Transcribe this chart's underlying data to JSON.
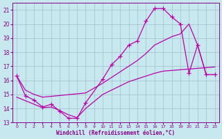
{
  "xlabel": "Windchill (Refroidissement éolien,°C)",
  "bg_color": "#c8e8f0",
  "line_color": "#bb00aa",
  "grid_color": "#a0bfcc",
  "xlim": [
    -0.5,
    23.5
  ],
  "ylim": [
    13,
    21.5
  ],
  "xticks": [
    0,
    1,
    2,
    3,
    4,
    5,
    6,
    7,
    8,
    9,
    10,
    11,
    12,
    13,
    14,
    15,
    16,
    17,
    18,
    19,
    20,
    21,
    22,
    23
  ],
  "yticks": [
    13,
    14,
    15,
    16,
    17,
    18,
    19,
    20,
    21
  ],
  "line1_x": [
    0,
    1,
    2,
    3,
    4,
    5,
    6,
    7,
    8,
    10,
    11,
    12,
    13,
    14,
    15,
    16,
    17,
    18,
    19,
    20,
    21,
    22,
    23
  ],
  "line1_y": [
    16.3,
    14.9,
    14.6,
    14.1,
    14.3,
    13.8,
    13.3,
    13.3,
    14.4,
    16.1,
    17.1,
    17.7,
    18.5,
    18.8,
    20.2,
    21.1,
    21.1,
    20.5,
    20.0,
    16.5,
    18.5,
    16.4,
    16.4
  ],
  "line2_x": [
    0,
    1,
    2,
    3,
    8,
    10,
    11,
    12,
    13,
    14,
    15,
    16,
    17,
    18,
    19,
    20,
    21,
    22,
    23
  ],
  "line2_y": [
    16.3,
    15.3,
    15.0,
    14.8,
    15.1,
    15.8,
    16.2,
    16.6,
    17.0,
    17.4,
    17.9,
    18.5,
    18.8,
    19.1,
    19.3,
    20.0,
    18.5,
    16.4,
    16.4
  ],
  "line3_x": [
    0,
    1,
    2,
    3,
    4,
    5,
    6,
    7,
    8,
    9,
    10,
    11,
    12,
    13,
    14,
    15,
    16,
    17,
    18,
    19,
    20,
    21,
    22,
    23
  ],
  "line3_y": [
    14.8,
    14.55,
    14.3,
    14.05,
    14.1,
    13.85,
    13.55,
    13.35,
    14.0,
    14.5,
    15.0,
    15.3,
    15.6,
    15.9,
    16.1,
    16.3,
    16.5,
    16.65,
    16.7,
    16.75,
    16.8,
    16.85,
    16.9,
    16.95
  ],
  "font_color": "#880088"
}
